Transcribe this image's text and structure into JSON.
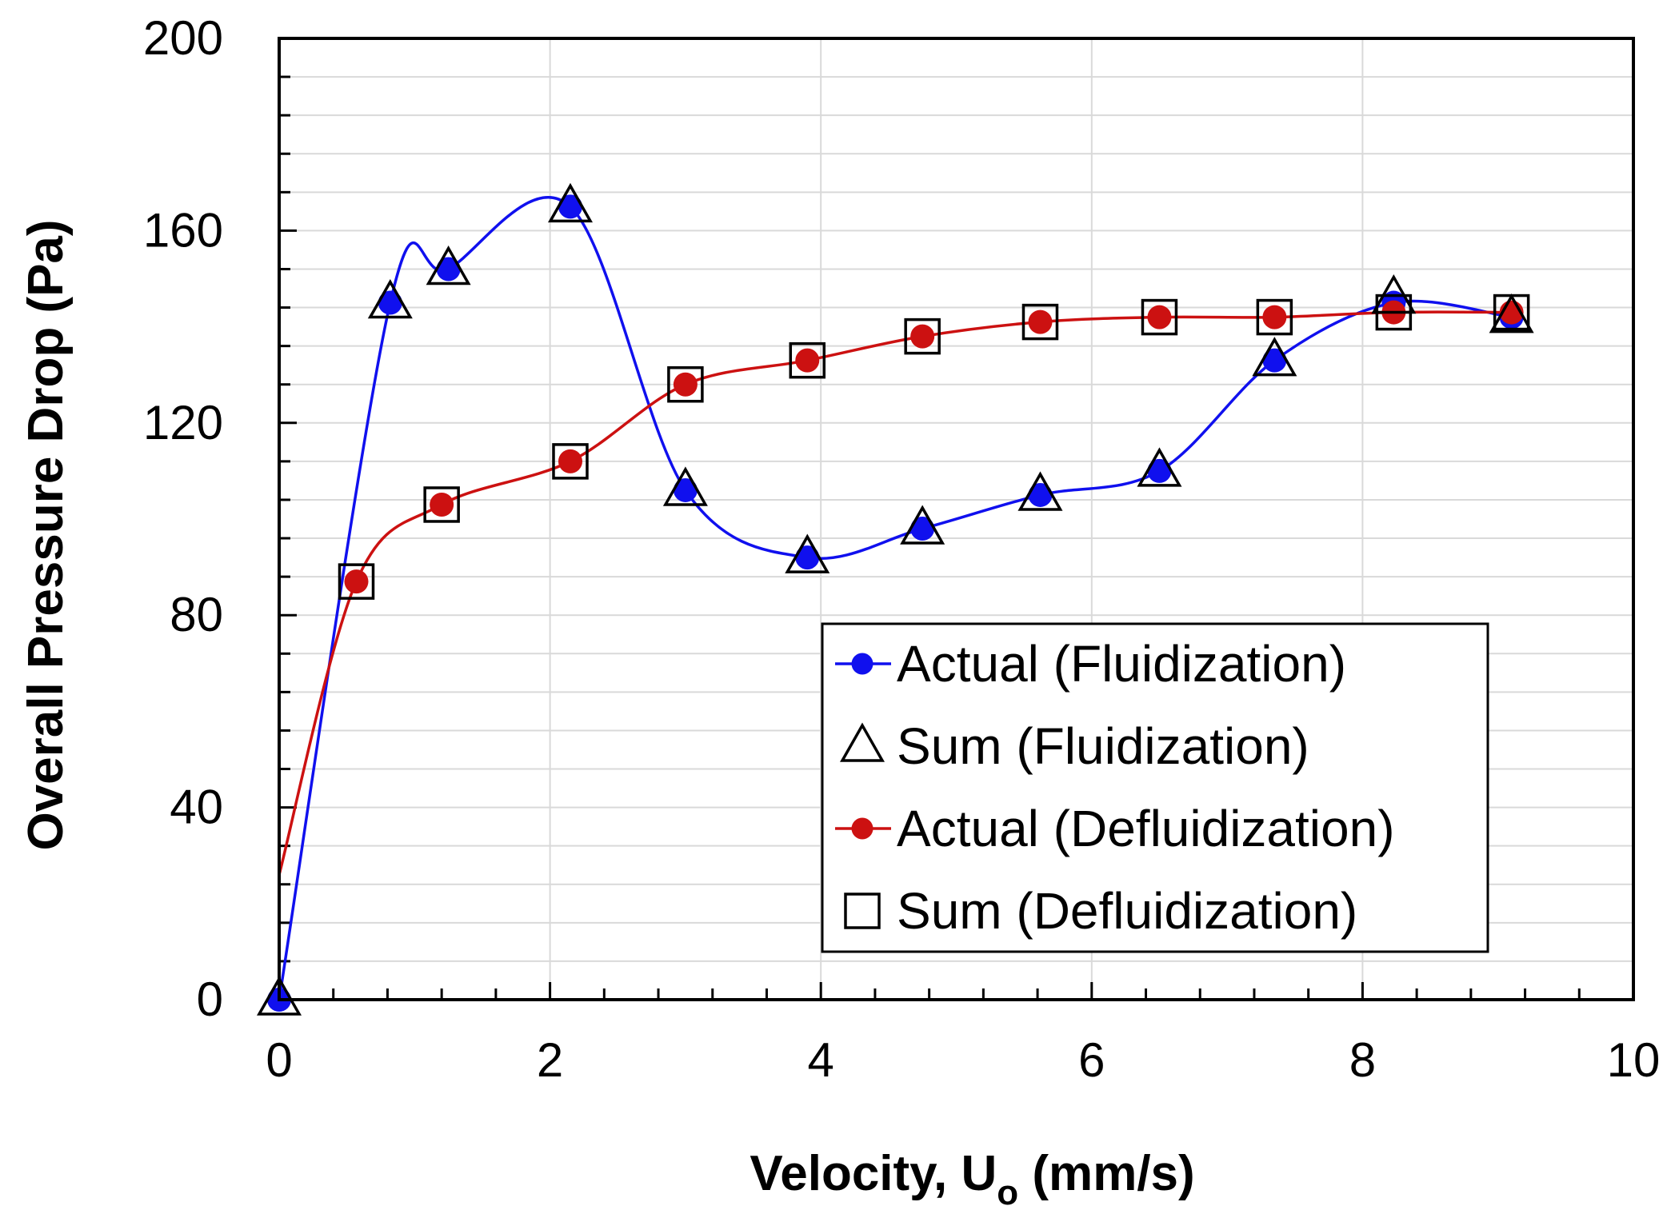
{
  "chart_data": {
    "type": "line",
    "title": "",
    "xlabel": "Velocity, U",
    "xlabel_subscript": "o",
    "xlabel_unit": " (mm/s)",
    "ylabel": "Overall Pressure Drop (Pa)",
    "xlim": [
      0,
      10
    ],
    "ylim": [
      0,
      200
    ],
    "x_ticks": [
      0,
      2,
      4,
      6,
      8,
      10
    ],
    "x_tick_labels": [
      "0",
      "2",
      "4",
      "6",
      "8",
      "10"
    ],
    "y_ticks": [
      0,
      40,
      80,
      120,
      160,
      200
    ],
    "y_tick_labels": [
      "0",
      "40",
      "80",
      "120",
      "160",
      "200"
    ],
    "x_minor_step": 0.4,
    "y_minor_step": 8,
    "grid": true,
    "legend_position": "bottom-right",
    "series": [
      {
        "name": "Actual (Fluidization)",
        "marker": "filled-circle",
        "color": "#1010ee",
        "line": true,
        "x": [
          0,
          0.82,
          1.25,
          2.15,
          3.0,
          3.9,
          4.75,
          5.62,
          6.5,
          7.35,
          8.23,
          9.1
        ],
        "y": [
          0,
          145,
          152,
          165,
          106,
          92,
          98,
          105,
          110,
          133,
          145,
          142
        ]
      },
      {
        "name": "Sum (Fluidization)",
        "marker": "open-triangle",
        "color": "#000000",
        "line": false,
        "x": [
          0,
          0.82,
          1.25,
          2.15,
          3.0,
          3.9,
          4.75,
          5.62,
          6.5,
          7.35,
          8.23,
          9.1
        ],
        "y": [
          0,
          145,
          152,
          165,
          106,
          92,
          98,
          105,
          110,
          133,
          146,
          142
        ]
      },
      {
        "name": "Actual (Defluidization)",
        "marker": "filled-circle",
        "color": "#cc1111",
        "line": true,
        "x": [
          0.57,
          1.2,
          2.15,
          3.0,
          3.9,
          4.75,
          5.62,
          6.5,
          7.35,
          8.23,
          9.1
        ],
        "y": [
          87,
          103,
          112,
          128,
          133,
          138,
          141,
          142,
          142,
          143,
          143
        ]
      },
      {
        "name": "Sum (Defluidization)",
        "marker": "open-square",
        "color": "#000000",
        "line": false,
        "x": [
          0.57,
          1.2,
          2.15,
          3.0,
          3.9,
          4.75,
          5.62,
          6.5,
          7.35,
          8.23,
          9.1
        ],
        "y": [
          87,
          103,
          112,
          128,
          133,
          138,
          141,
          142,
          142,
          143,
          143
        ]
      }
    ]
  }
}
